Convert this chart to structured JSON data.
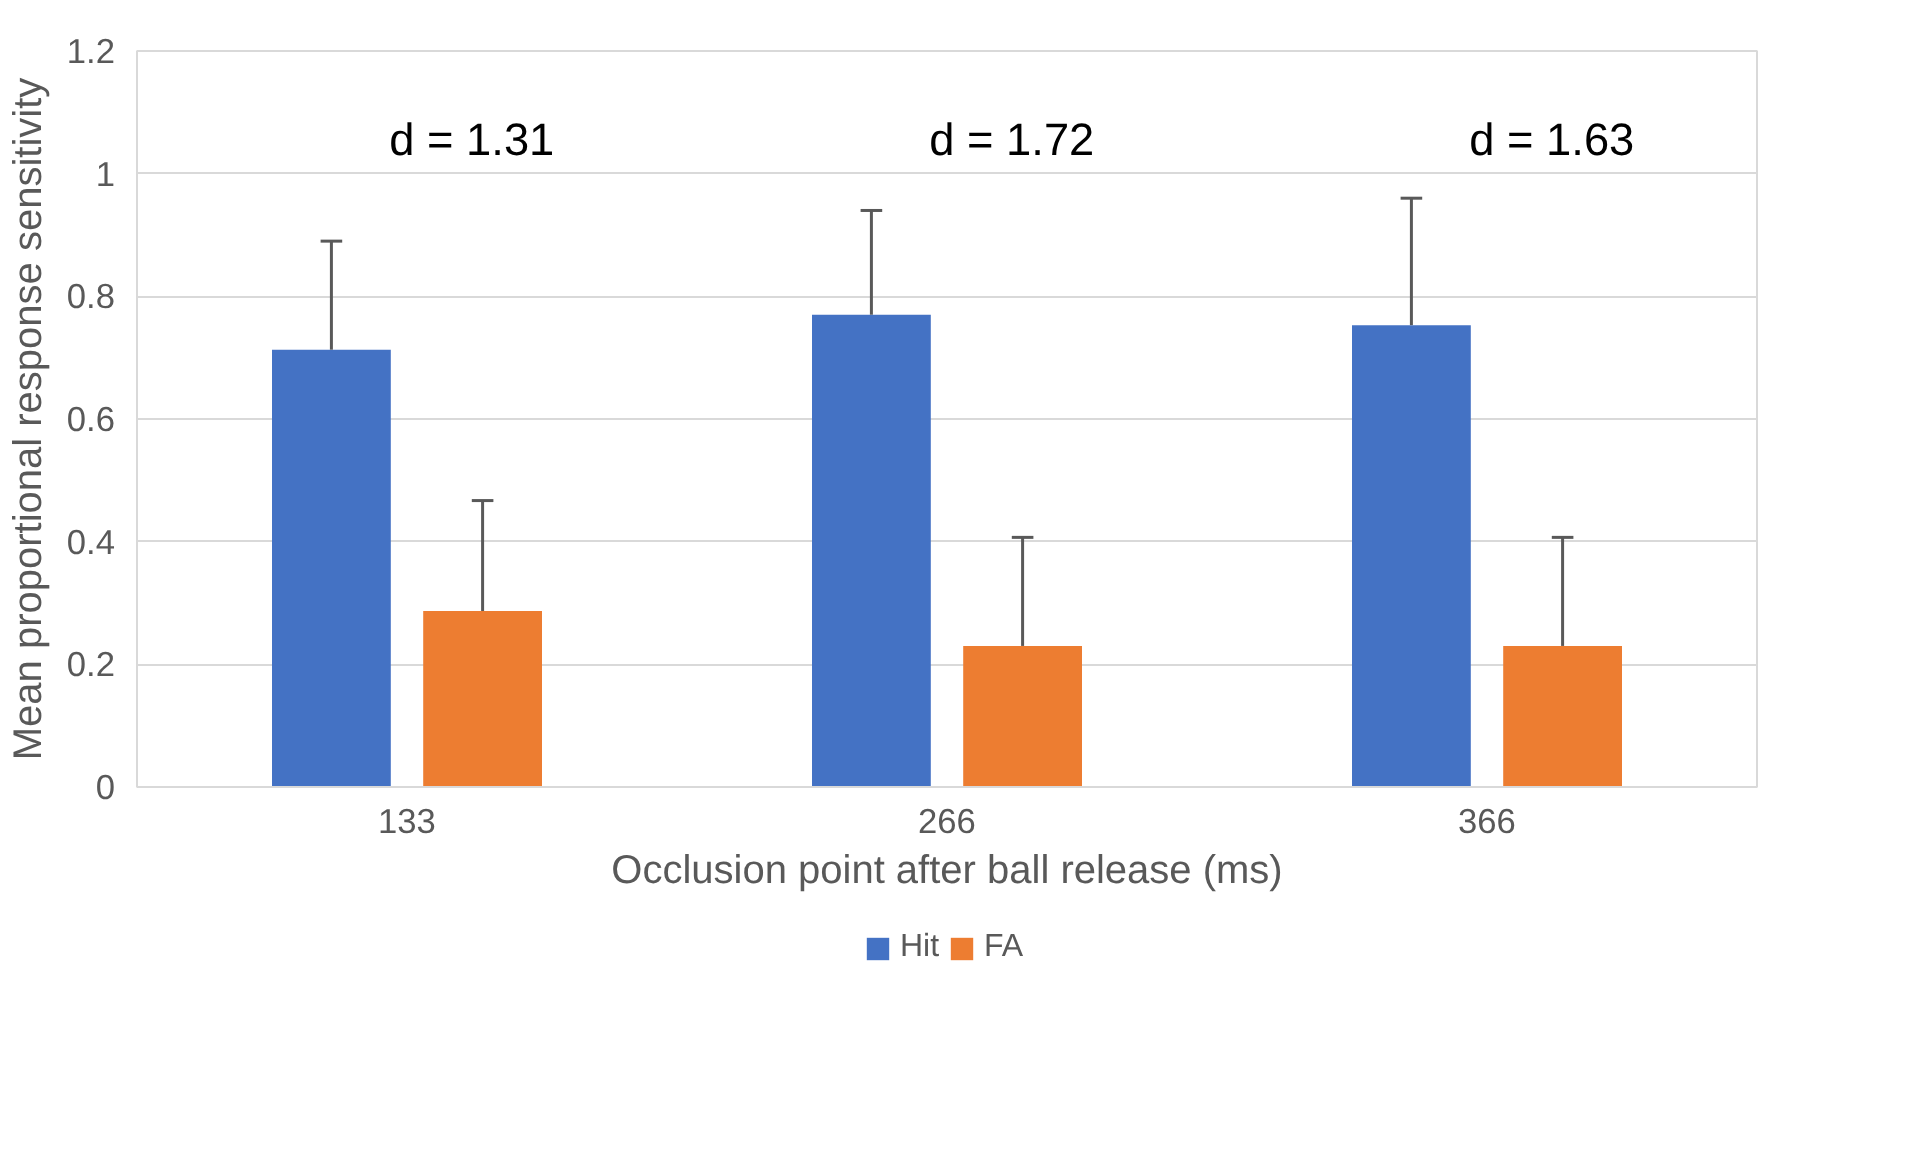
{
  "chart_data": {
    "type": "bar",
    "xlabel": "Occlusion point after ball release (ms)",
    "ylabel": "Mean proportional response sensitivity",
    "categories": [
      "133",
      "266",
      "366"
    ],
    "series": [
      {
        "name": "Hit",
        "color": "#4472c4",
        "values": [
          0.713,
          0.77,
          0.753
        ],
        "errors": [
          [
            0.713,
            0.89
          ],
          [
            0.77,
            0.94
          ],
          [
            0.753,
            0.96
          ]
        ]
      },
      {
        "name": "FA",
        "color": "#ed7d31",
        "values": [
          0.287,
          0.23,
          0.23
        ],
        "errors": [
          [
            0.287,
            0.467
          ],
          [
            0.23,
            0.407
          ],
          [
            0.23,
            0.407
          ]
        ]
      }
    ],
    "ylim": [
      0,
      1.2
    ],
    "yticks": [
      0,
      0.2,
      0.4,
      0.6,
      0.8,
      1,
      1.2
    ],
    "grid": "y",
    "legend": "bottom",
    "annotations": [
      "d = 1.31",
      "d = 1.72",
      "d = 1.63"
    ]
  }
}
